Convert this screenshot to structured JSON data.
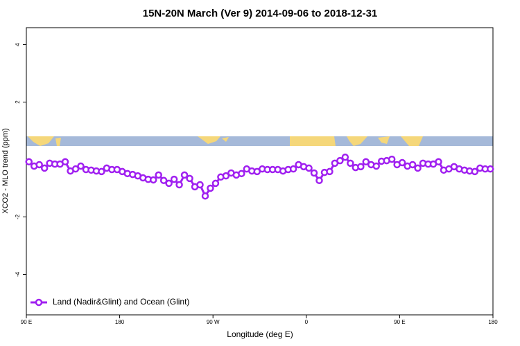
{
  "chart_data": {
    "type": "line",
    "title": "15N-20N March (Ver 9)   2014-09-06 to 2018-12-31",
    "x_label": "Longitude (deg E)",
    "y_label": "XCO2 - MLO trend (ppm)",
    "x": [
      92.5,
      97.5,
      102.5,
      107.5,
      112.5,
      117.5,
      122.5,
      127.5,
      132.5,
      137.5,
      142.5,
      147.5,
      152.5,
      157.5,
      162.5,
      167.5,
      172.5,
      177.5,
      182.5,
      187.5,
      192.5,
      197.5,
      202.5,
      207.5,
      212.5,
      217.5,
      222.5,
      227.5,
      232.5,
      237.5,
      242.5,
      247.5,
      252.5,
      257.5,
      262.5,
      267.5,
      272.5,
      277.5,
      282.5,
      287.5,
      292.5,
      297.5,
      302.5,
      307.5,
      312.5,
      317.5,
      322.5,
      327.5,
      332.5,
      337.5,
      342.5,
      347.5,
      352.5,
      357.5,
      362.5,
      367.5,
      372.5,
      377.5,
      382.5,
      387.5,
      392.5,
      397.5,
      402.5,
      407.5,
      412.5,
      417.5,
      422.5,
      427.5,
      432.5,
      437.5,
      442.5,
      447.5,
      452.5,
      457.5,
      462.5,
      467.5,
      472.5,
      477.5,
      482.5,
      487.5,
      492.5,
      497.5,
      502.5,
      507.5,
      512.5,
      517.5,
      522.5,
      527.5,
      532.5,
      537.5
    ],
    "series": [
      {
        "name": "Land (Nadir&Glint) and Ocean (Glint)",
        "color": "#a020f0",
        "values": [
          -0.08,
          -0.23,
          -0.18,
          -0.3,
          -0.13,
          -0.16,
          -0.16,
          -0.08,
          -0.4,
          -0.33,
          -0.23,
          -0.35,
          -0.37,
          -0.4,
          -0.42,
          -0.3,
          -0.35,
          -0.35,
          -0.42,
          -0.49,
          -0.52,
          -0.57,
          -0.64,
          -0.69,
          -0.71,
          -0.54,
          -0.73,
          -0.83,
          -0.69,
          -0.88,
          -0.54,
          -0.66,
          -0.95,
          -0.88,
          -1.27,
          -1.0,
          -0.83,
          -0.61,
          -0.57,
          -0.47,
          -0.54,
          -0.49,
          -0.33,
          -0.4,
          -0.42,
          -0.33,
          -0.35,
          -0.35,
          -0.35,
          -0.4,
          -0.35,
          -0.33,
          -0.18,
          -0.25,
          -0.3,
          -0.47,
          -0.73,
          -0.45,
          -0.42,
          -0.13,
          -0.04,
          0.08,
          -0.13,
          -0.28,
          -0.25,
          -0.08,
          -0.18,
          -0.23,
          -0.06,
          -0.04,
          0.01,
          -0.18,
          -0.11,
          -0.23,
          -0.18,
          -0.3,
          -0.13,
          -0.16,
          -0.16,
          -0.08,
          -0.37,
          -0.33,
          -0.25,
          -0.33,
          -0.37,
          -0.4,
          -0.42,
          -0.3,
          -0.33,
          -0.33
        ]
      }
    ],
    "xlim": [
      90,
      540
    ],
    "xticks": [
      {
        "value": 90,
        "label": "90 E"
      },
      180,
      {
        "value": 270,
        "label": "90 W"
      },
      {
        "value": 360,
        "label": "0"
      },
      {
        "value": 450,
        "label": "90 E"
      },
      {
        "value": 540,
        "label": "180"
      }
    ],
    "ylim": [
      -5.41,
      4.59
    ],
    "yticks": [
      -4,
      -2,
      2,
      4
    ],
    "grid": false,
    "legend": "bottom-left"
  }
}
